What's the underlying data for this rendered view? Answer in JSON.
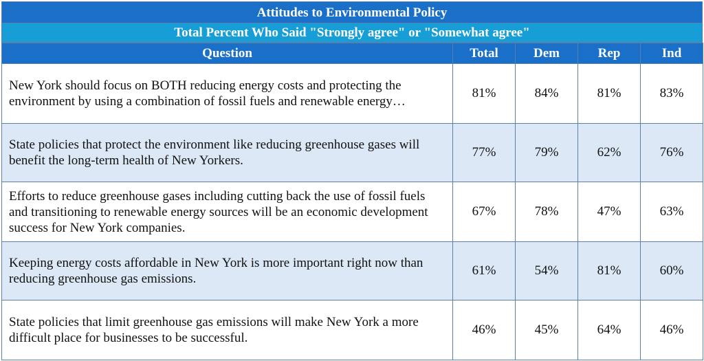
{
  "chart_data": {
    "type": "table",
    "title": "Attitudes to Environmental Policy",
    "subtitle": "Total Percent Who Said \"Strongly agree\" or \"Somewhat agree\"",
    "columns": [
      "Question",
      "Total",
      "Dem",
      "Rep",
      "Ind"
    ],
    "rows": [
      {
        "question": "New York should focus on BOTH reducing energy costs and protecting the environment by using a combination of fossil fuels and renewable energy…",
        "values": [
          "81%",
          "84%",
          "81%",
          "83%"
        ]
      },
      {
        "question": "State policies that protect the environment like reducing greenhouse gases will benefit the long-term health of New Yorkers.",
        "values": [
          "77%",
          "79%",
          "62%",
          "76%"
        ]
      },
      {
        "question": "Efforts to reduce greenhouse gases including cutting back the use of fossil fuels and transitioning to renewable energy sources will be an economic development success for New York companies.",
        "values": [
          "67%",
          "78%",
          "47%",
          "63%"
        ]
      },
      {
        "question": "Keeping energy costs affordable in New York is more important right now than reducing greenhouse gas emissions.",
        "values": [
          "61%",
          "54%",
          "81%",
          "60%"
        ]
      },
      {
        "question": "State policies that limit greenhouse gas emissions will make New York a more difficult place for businesses to be successful.",
        "values": [
          "46%",
          "45%",
          "64%",
          "46%"
        ]
      }
    ]
  },
  "colors": {
    "header_blue": "#1a6fc8",
    "subheader_cyan": "#189ed6",
    "alt_row": "#dce8f6",
    "border": "#5a7fa8"
  }
}
